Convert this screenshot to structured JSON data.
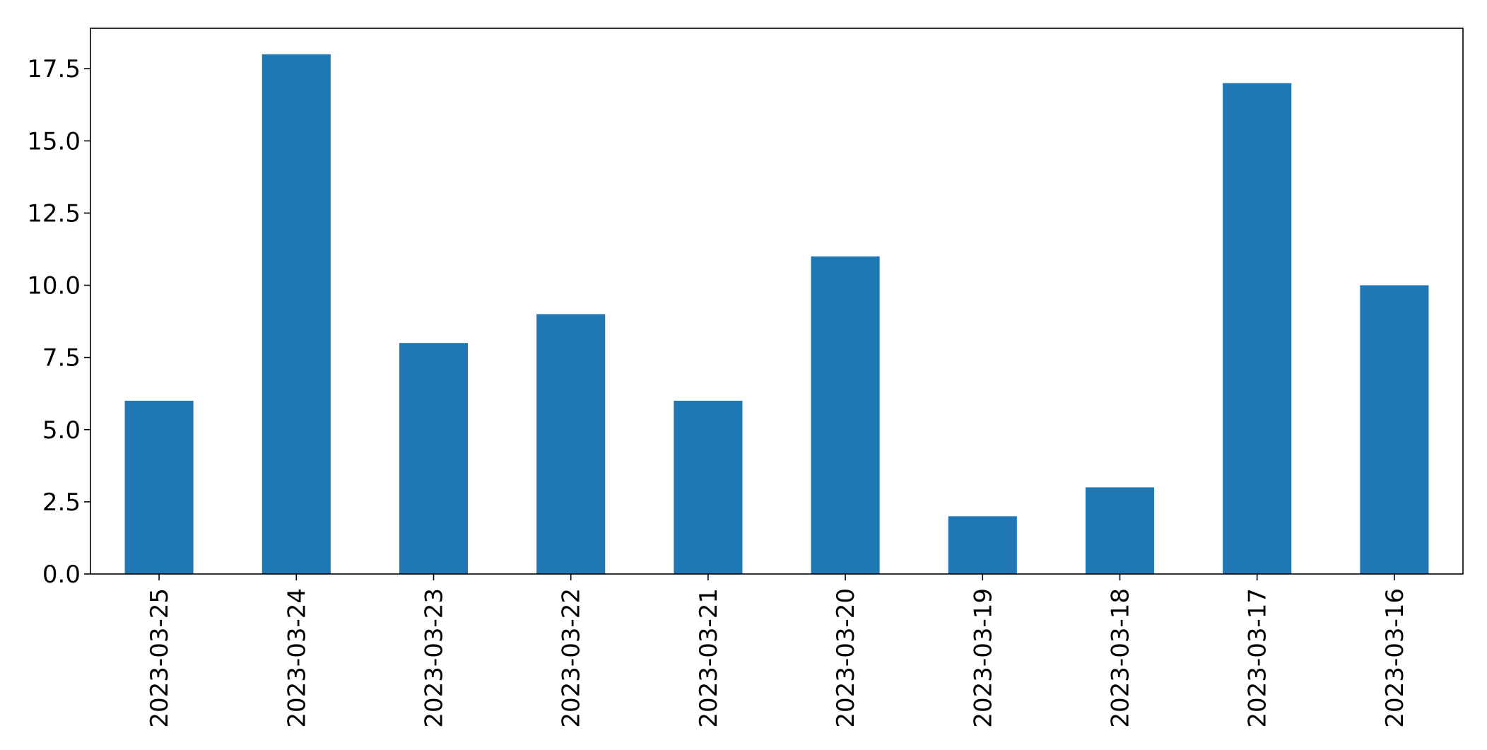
{
  "chart_data": {
    "type": "bar",
    "categories": [
      "2023-03-25",
      "2023-03-24",
      "2023-03-23",
      "2023-03-22",
      "2023-03-21",
      "2023-03-20",
      "2023-03-19",
      "2023-03-18",
      "2023-03-17",
      "2023-03-16"
    ],
    "values": [
      6,
      18,
      8,
      9,
      6,
      11,
      2,
      3,
      17,
      10
    ],
    "ylim": [
      0,
      18.9
    ],
    "yticks": [
      0,
      2.5,
      5,
      7.5,
      10,
      12.5,
      15,
      17.5
    ],
    "ytick_labels": [
      "0.0",
      "2.5",
      "5.0",
      "7.5",
      "10.0",
      "12.5",
      "15.0",
      "17.5"
    ],
    "xtick_rotation": "vertical",
    "title": "",
    "xlabel": "",
    "ylabel": "",
    "grid": false,
    "legend": "none",
    "colors": {
      "bar": "#1f77b4",
      "axis": "#000000",
      "background": "#ffffff"
    }
  }
}
